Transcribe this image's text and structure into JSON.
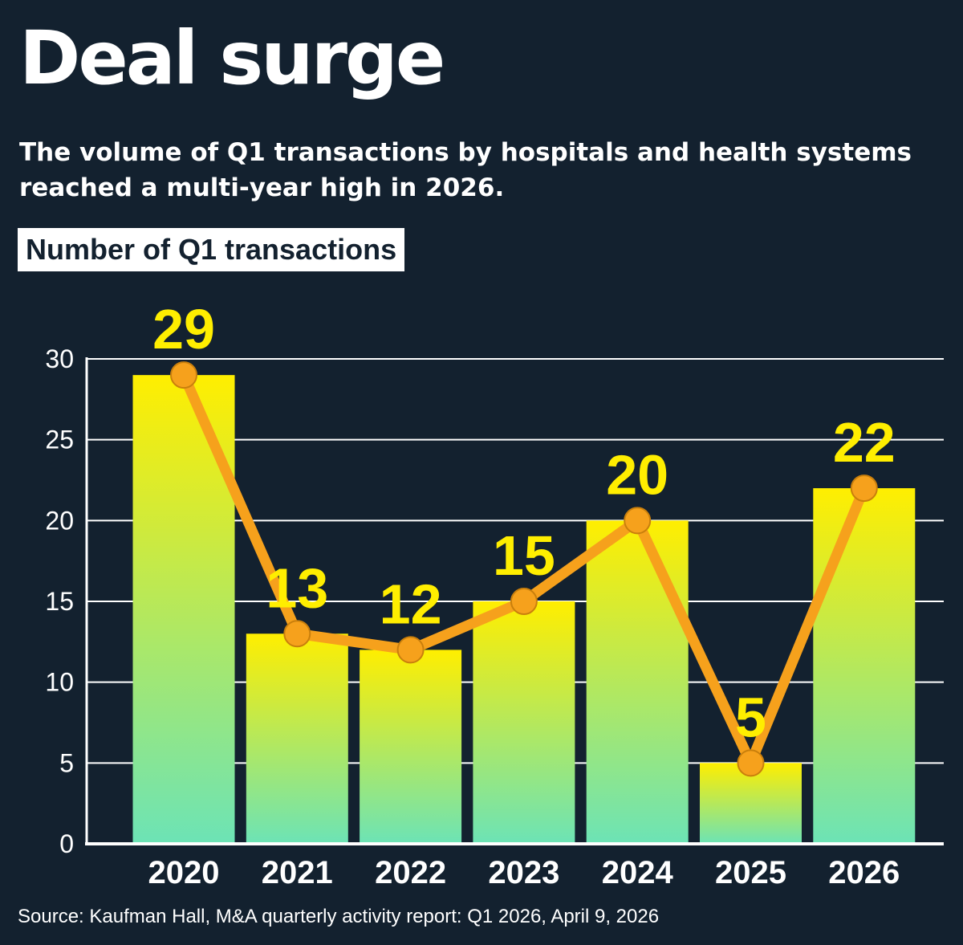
{
  "header": {
    "title": "Deal surge",
    "subtitle": "The volume of Q1 transactions by hospitals and health systems reached a multi-year high in 2026.",
    "chart_label": "Number of Q1 transactions"
  },
  "footer": {
    "source": "Source: Kaufman Hall, M&A quarterly activity report: Q1 2026, April 9, 2026"
  },
  "colors": {
    "background": "#13212f",
    "bar_top": "#ffee00",
    "bar_bottom": "#6ce3b6",
    "line": "#f6a11c",
    "data_label": "#ffee00",
    "grid": "#ffffff"
  },
  "chart_data": {
    "type": "bar",
    "title": "Number of Q1 transactions",
    "categories": [
      "2020",
      "2021",
      "2022",
      "2023",
      "2024",
      "2025",
      "2026"
    ],
    "values": [
      29,
      13,
      12,
      15,
      20,
      5,
      22
    ],
    "data_labels": [
      "29",
      "13",
      "12",
      "15",
      "20",
      "5",
      "22"
    ],
    "overlay": "line-with-markers",
    "ylim": [
      0,
      30
    ],
    "yticks": [
      "0",
      "5",
      "10",
      "15",
      "20",
      "25",
      "30"
    ],
    "grid": true,
    "legend": "none"
  }
}
